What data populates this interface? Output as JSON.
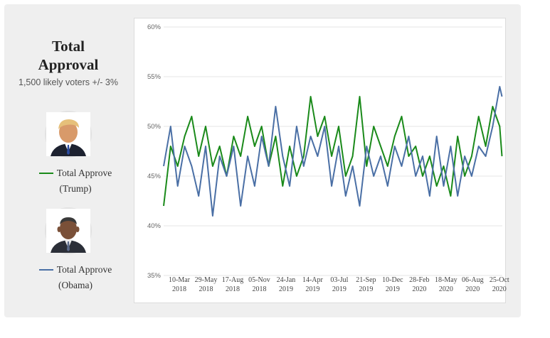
{
  "sidebar": {
    "title_line1": "Total",
    "title_line2": "Approval",
    "subtitle": "1,500 likely voters +/- 3%",
    "legend": [
      {
        "label": "Total Approve",
        "sublabel": "(Trump)",
        "color": "#1a8a1a",
        "avatar_icon": "trump-portrait-icon"
      },
      {
        "label": "Total Approve",
        "sublabel": "(Obama)",
        "color": "#4a6fa5",
        "avatar_icon": "obama-portrait-icon"
      }
    ]
  },
  "chart_data": {
    "type": "line",
    "ylim": [
      35,
      60
    ],
    "yticks": [
      35,
      40,
      45,
      50,
      55,
      60
    ],
    "ytick_labels": [
      "35%",
      "40%",
      "45%",
      "50%",
      "55%",
      "60%"
    ],
    "xlim": [
      "2018-01-22",
      "2020-11-03"
    ],
    "xticks": [
      {
        "date": "2018-03-10",
        "line1": "10-Mar",
        "line2": "2018"
      },
      {
        "date": "2018-05-29",
        "line1": "29-May",
        "line2": "2018"
      },
      {
        "date": "2018-08-17",
        "line1": "17-Aug",
        "line2": "2018"
      },
      {
        "date": "2018-11-05",
        "line1": "05-Nov",
        "line2": "2018"
      },
      {
        "date": "2019-01-24",
        "line1": "24-Jan",
        "line2": "2019"
      },
      {
        "date": "2019-04-14",
        "line1": "14-Apr",
        "line2": "2019"
      },
      {
        "date": "2019-07-03",
        "line1": "03-Jul",
        "line2": "2019"
      },
      {
        "date": "2019-09-21",
        "line1": "21-Sep",
        "line2": "2019"
      },
      {
        "date": "2019-12-10",
        "line1": "10-Dec",
        "line2": "2019"
      },
      {
        "date": "2020-02-28",
        "line1": "28-Feb",
        "line2": "2020"
      },
      {
        "date": "2020-05-18",
        "line1": "18-May",
        "line2": "2020"
      },
      {
        "date": "2020-08-06",
        "line1": "06-Aug",
        "line2": "2020"
      },
      {
        "date": "2020-10-25",
        "line1": "25-Oct",
        "line2": "2020"
      }
    ],
    "grid": "horizontal",
    "series": [
      {
        "name": "Total Approve (Trump)",
        "color": "#1a8a1a",
        "x": [
          "2018-01-22",
          "2018-02-12",
          "2018-03-05",
          "2018-03-26",
          "2018-04-16",
          "2018-05-07",
          "2018-05-28",
          "2018-06-18",
          "2018-07-09",
          "2018-07-30",
          "2018-08-20",
          "2018-09-10",
          "2018-10-01",
          "2018-10-22",
          "2018-11-12",
          "2018-12-03",
          "2018-12-24",
          "2019-01-14",
          "2019-02-04",
          "2019-02-25",
          "2019-03-18",
          "2019-04-08",
          "2019-04-29",
          "2019-05-20",
          "2019-06-10",
          "2019-07-01",
          "2019-07-22",
          "2019-08-12",
          "2019-09-02",
          "2019-09-23",
          "2019-10-14",
          "2019-11-04",
          "2019-11-25",
          "2019-12-16",
          "2020-01-06",
          "2020-01-27",
          "2020-02-17",
          "2020-03-09",
          "2020-03-30",
          "2020-04-20",
          "2020-05-11",
          "2020-06-01",
          "2020-06-22",
          "2020-07-13",
          "2020-08-03",
          "2020-08-24",
          "2020-09-14",
          "2020-10-05",
          "2020-10-26",
          "2020-11-02"
        ],
        "y": [
          42,
          48,
          46,
          49,
          51,
          47,
          50,
          46,
          48,
          45,
          49,
          47,
          51,
          48,
          50,
          46,
          49,
          44,
          48,
          45,
          47,
          53,
          49,
          51,
          47,
          50,
          45,
          47,
          53,
          46,
          50,
          48,
          46,
          49,
          51,
          47,
          48,
          45,
          47,
          44,
          46,
          43,
          49,
          45,
          47,
          51,
          48,
          52,
          50,
          47
        ]
      },
      {
        "name": "Total Approve (Obama)",
        "color": "#4a6fa5",
        "x": [
          "2018-01-22",
          "2018-02-12",
          "2018-03-05",
          "2018-03-26",
          "2018-04-16",
          "2018-05-07",
          "2018-05-28",
          "2018-06-18",
          "2018-07-09",
          "2018-07-30",
          "2018-08-20",
          "2018-09-10",
          "2018-10-01",
          "2018-10-22",
          "2018-11-12",
          "2018-12-03",
          "2018-12-24",
          "2019-01-14",
          "2019-02-04",
          "2019-02-25",
          "2019-03-18",
          "2019-04-08",
          "2019-04-29",
          "2019-05-20",
          "2019-06-10",
          "2019-07-01",
          "2019-07-22",
          "2019-08-12",
          "2019-09-02",
          "2019-09-23",
          "2019-10-14",
          "2019-11-04",
          "2019-11-25",
          "2019-12-16",
          "2020-01-06",
          "2020-01-27",
          "2020-02-17",
          "2020-03-09",
          "2020-03-30",
          "2020-04-20",
          "2020-05-11",
          "2020-06-01",
          "2020-06-22",
          "2020-07-13",
          "2020-08-03",
          "2020-08-24",
          "2020-09-14",
          "2020-10-05",
          "2020-10-26",
          "2020-11-02"
        ],
        "y": [
          46,
          50,
          44,
          48,
          46,
          43,
          48,
          41,
          47,
          45,
          48,
          42,
          47,
          44,
          49,
          46,
          52,
          47,
          44,
          50,
          46,
          49,
          47,
          50,
          44,
          48,
          43,
          46,
          42,
          48,
          45,
          47,
          44,
          48,
          46,
          49,
          45,
          47,
          43,
          49,
          44,
          48,
          43,
          47,
          45,
          48,
          47,
          50,
          54,
          53
        ]
      }
    ]
  }
}
